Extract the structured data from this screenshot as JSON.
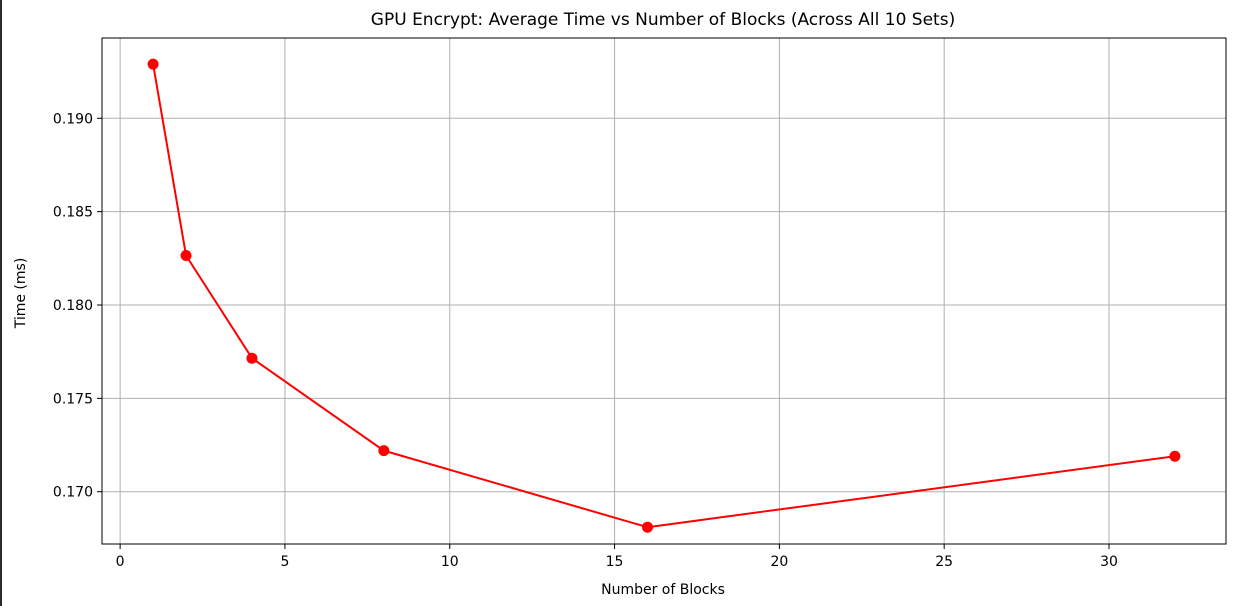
{
  "chart_data": {
    "type": "line",
    "title": "GPU Encrypt: Average Time vs Number of Blocks (Across All 10 Sets)",
    "xlabel": "Number of Blocks",
    "ylabel": "Time (ms)",
    "xlim": [
      -0.55,
      33.55
    ],
    "ylim": [
      0.1672,
      0.1943
    ],
    "x_ticks": [
      0,
      5,
      10,
      15,
      20,
      25,
      30
    ],
    "x_tick_labels": [
      "0",
      "5",
      "10",
      "15",
      "20",
      "25",
      "30"
    ],
    "y_ticks": [
      0.17,
      0.175,
      0.18,
      0.185,
      0.19
    ],
    "y_tick_labels": [
      "0.170",
      "0.175",
      "0.180",
      "0.185",
      "0.190"
    ],
    "grid": true,
    "series": [
      {
        "color": "#ff0000",
        "marker": "circle",
        "x": [
          1,
          2,
          4,
          8,
          16,
          32
        ],
        "y": [
          0.1929,
          0.18265,
          0.17715,
          0.1722,
          0.1681,
          0.1719
        ]
      }
    ]
  }
}
